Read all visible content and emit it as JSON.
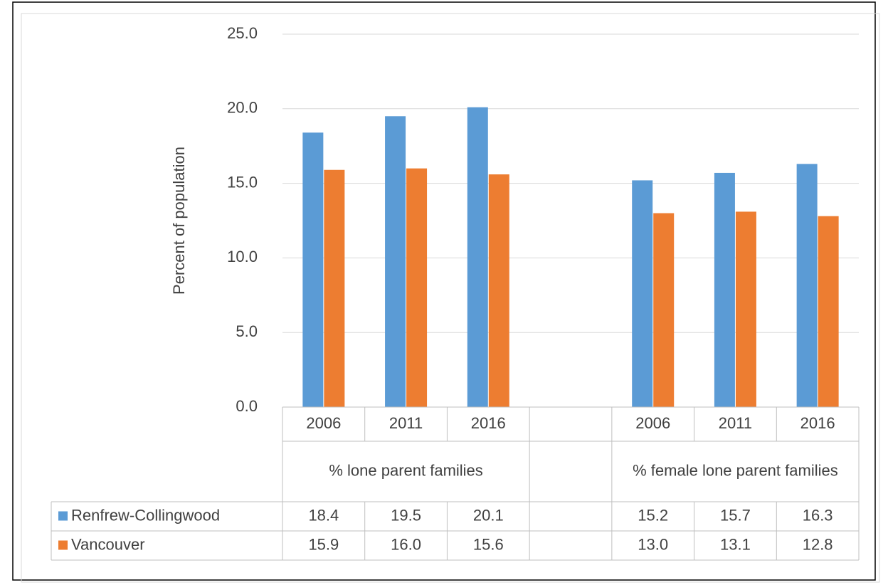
{
  "chart_data": {
    "type": "bar",
    "y_label": "Percent of population",
    "categories": [
      "2006",
      "2011",
      "2016",
      null,
      "2006",
      "2011",
      "2016"
    ],
    "groups": [
      {
        "label": "% lone parent families",
        "span": [
          0,
          2
        ]
      },
      {
        "label": "% female lone parent families",
        "span": [
          4,
          6
        ]
      }
    ],
    "series": [
      {
        "name": "Renfrew-Collingwood",
        "color": "#5b9bd5",
        "values": [
          18.4,
          19.5,
          20.1,
          null,
          15.2,
          15.7,
          16.3
        ],
        "value_labels": [
          "18.4",
          "19.5",
          "20.1",
          null,
          "15.2",
          "15.7",
          "16.3"
        ]
      },
      {
        "name": "Vancouver",
        "color": "#ed7d31",
        "values": [
          15.9,
          16.0,
          15.6,
          null,
          13.0,
          13.1,
          12.8
        ],
        "value_labels": [
          "15.9",
          "16.0",
          "15.6",
          null,
          "13.0",
          "13.1",
          "12.8"
        ]
      }
    ],
    "ylim": [
      0,
      25
    ],
    "yticks": [
      {
        "value": 0,
        "label": "0.0"
      },
      {
        "value": 5,
        "label": "5.0"
      },
      {
        "value": 10,
        "label": "10.0"
      },
      {
        "value": 15,
        "label": "15.0"
      },
      {
        "value": 20,
        "label": "20.0"
      },
      {
        "value": 25,
        "label": "25.0"
      }
    ],
    "grid": true,
    "data_table": true
  }
}
